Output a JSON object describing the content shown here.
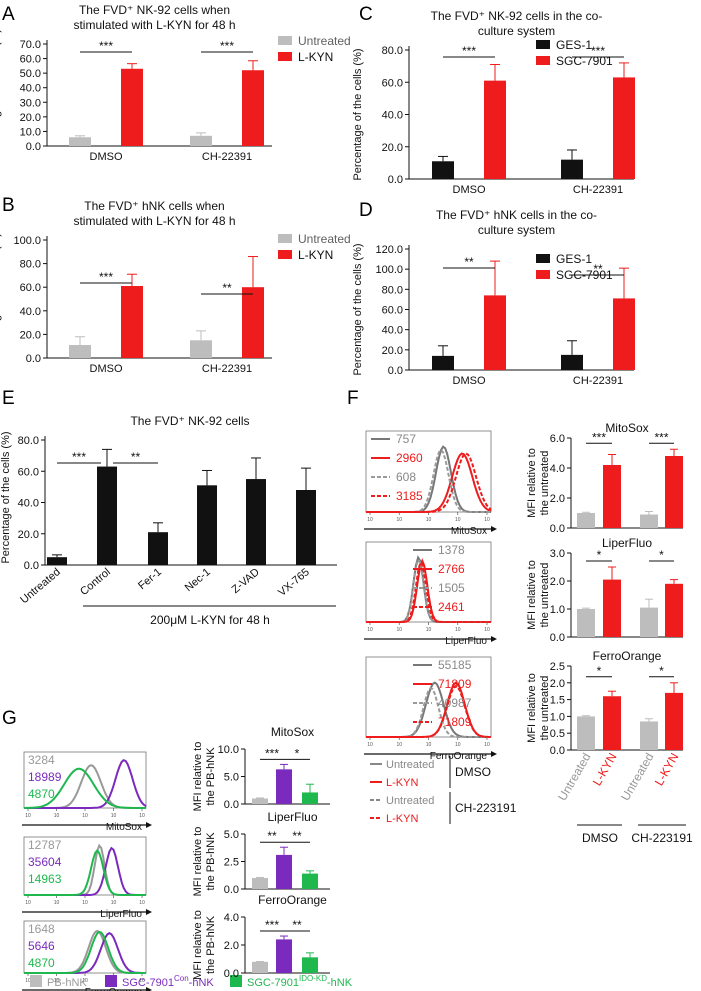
{
  "colors": {
    "gray": "#bdbdbd",
    "red": "#ee1c1c",
    "black": "#111111",
    "purple": "#7a2bbd",
    "green": "#1fb84f",
    "dark": "#606060"
  },
  "panel_letters": {
    "A": "A",
    "B": "B",
    "C": "C",
    "D": "D",
    "E": "E",
    "F": "F",
    "G": "G"
  },
  "chart_data": [
    {
      "id": "A",
      "type": "bar",
      "title": [
        "The FVD⁺ NK-92 cells when",
        "stimulated with L-KYN for 48 h"
      ],
      "ylabel": "Percentage of the cells (%)",
      "categories": [
        "DMSO",
        "CH-22391"
      ],
      "legend": [
        "Untreated",
        "L-KYN"
      ],
      "ylim": [
        0,
        70
      ],
      "yticks": [
        "0.0",
        "10.0",
        "20.0",
        "30.0",
        "40.0",
        "50.0",
        "60.0",
        "70.0"
      ],
      "series": [
        {
          "name": "Untreated",
          "values": [
            6,
            7
          ],
          "errors": [
            1,
            2
          ]
        },
        {
          "name": "L-KYN",
          "values": [
            53,
            52
          ],
          "errors": [
            3.5,
            6.5
          ]
        }
      ],
      "sig": [
        "***",
        "***"
      ]
    },
    {
      "id": "B",
      "type": "bar",
      "title": [
        "The FVD⁺ hNK cells when",
        "stimulated with L-KYN for 48 h"
      ],
      "ylabel": "Percentage of the cells (%)",
      "categories": [
        "DMSO",
        "CH-22391"
      ],
      "legend": [
        "Untreated",
        "L-KYN"
      ],
      "ylim": [
        0,
        100
      ],
      "yticks": [
        "0.0",
        "20.0",
        "40.0",
        "60.0",
        "80.0",
        "100.0"
      ],
      "series": [
        {
          "name": "Untreated",
          "values": [
            11,
            15
          ],
          "errors": [
            7,
            8
          ]
        },
        {
          "name": "L-KYN",
          "values": [
            61,
            60
          ],
          "errors": [
            10,
            26
          ]
        }
      ],
      "sig": [
        "***",
        "**"
      ]
    },
    {
      "id": "C",
      "type": "bar",
      "title": [
        "The FVD⁺ NK-92 cells in the co-",
        "culture system"
      ],
      "ylabel": "Percentage of the cells (%)",
      "categories": [
        "DMSO",
        "CH-22391"
      ],
      "legend": [
        "GES-1",
        "SGC-7901"
      ],
      "ylim": [
        0,
        80
      ],
      "yticks": [
        "0.0",
        "20.0",
        "40.0",
        "60.0",
        "80.0"
      ],
      "series": [
        {
          "name": "GES-1",
          "values": [
            11,
            12
          ],
          "errors": [
            3,
            6
          ]
        },
        {
          "name": "SGC-7901",
          "values": [
            61,
            63
          ],
          "errors": [
            10,
            9
          ]
        }
      ],
      "sig": [
        "***",
        "***"
      ]
    },
    {
      "id": "D",
      "type": "bar",
      "title": [
        "The FVD⁺ hNK cells in the co-",
        "culture system"
      ],
      "ylabel": "Percentage of the cells (%)",
      "categories": [
        "DMSO",
        "CH-22391"
      ],
      "legend": [
        "GES-1",
        "SGC-7901"
      ],
      "ylim": [
        0,
        120
      ],
      "yticks": [
        "0.0",
        "20.0",
        "40.0",
        "60.0",
        "80.0",
        "100.0",
        "120.0"
      ],
      "series": [
        {
          "name": "GES-1",
          "values": [
            14,
            15
          ],
          "errors": [
            10,
            14
          ]
        },
        {
          "name": "SGC-7901",
          "values": [
            74,
            71
          ],
          "errors": [
            34,
            30
          ]
        }
      ],
      "sig": [
        "**",
        "**"
      ]
    },
    {
      "id": "E",
      "type": "bar",
      "title": [
        "The FVD⁺ NK-92 cells"
      ],
      "ylabel": "Percentage of the cells (%)",
      "categories": [
        "Untreated",
        "Control",
        "Fer-1",
        "Nec-1",
        "Z-VAD",
        "VX-765"
      ],
      "group_label": "200μM L-KYN for 48 h",
      "ylim": [
        0,
        80
      ],
      "yticks": [
        "0.0",
        "20.0",
        "40.0",
        "60.0",
        "80.0"
      ],
      "values": [
        5,
        63,
        21,
        51,
        55,
        48
      ],
      "errors": [
        1.5,
        11,
        6,
        9.5,
        13.5,
        14
      ],
      "sig": [
        {
          "from": 0,
          "to": 1,
          "label": "***"
        },
        {
          "from": 1,
          "to": 2,
          "label": "**"
        }
      ]
    },
    {
      "id": "F",
      "type": "bar",
      "ylabel": [
        "MFI relative to",
        "the untreated"
      ],
      "categories": [
        "Untreated",
        "L-KYN",
        "Untreated",
        "L-KYN"
      ],
      "group_labels": [
        "DMSO",
        "CH-223191"
      ],
      "subplots": [
        {
          "title": "MitoSox",
          "ylim": [
            0,
            6
          ],
          "yticks": [
            "0.0",
            "2.0",
            "4.0",
            "6.0"
          ],
          "values": [
            1.0,
            4.2,
            0.9,
            4.8
          ],
          "errors": [
            0.05,
            0.7,
            0.2,
            0.45
          ],
          "sig": [
            "***",
            "***"
          ]
        },
        {
          "title": "LiperFluo",
          "ylim": [
            0,
            3
          ],
          "yticks": [
            "0.0",
            "1.0",
            "2.0",
            "3.0"
          ],
          "values": [
            1.0,
            2.05,
            1.05,
            1.9
          ],
          "errors": [
            0.03,
            0.45,
            0.3,
            0.15
          ],
          "sig": [
            "*",
            "*"
          ]
        },
        {
          "title": "FerroOrange",
          "ylim": [
            0,
            2.5
          ],
          "yticks": [
            "0.0",
            "0.5",
            "1.0",
            "1.5",
            "2.0",
            "2.5"
          ],
          "values": [
            1.0,
            1.6,
            0.85,
            1.7
          ],
          "errors": [
            0.02,
            0.15,
            0.08,
            0.3
          ],
          "sig": [
            "*",
            "*"
          ]
        }
      ]
    },
    {
      "id": "F-histograms",
      "type": "histogram",
      "panels": [
        {
          "xlabel": "MitoSox",
          "mfi": [
            "757",
            "2960",
            "608",
            "3185"
          ]
        },
        {
          "xlabel": "LiperFluo",
          "mfi": [
            "1378",
            "2766",
            "1505",
            "2461"
          ]
        },
        {
          "xlabel": "FerroOrange",
          "mfi": [
            "55185",
            "71809",
            "40987",
            "71809"
          ]
        }
      ],
      "legend": [
        {
          "label": "Untreated",
          "group": "DMSO"
        },
        {
          "label": "L-KYN",
          "group": "DMSO"
        },
        {
          "label": "Untreated",
          "group": "CH-223191"
        },
        {
          "label": "L-KYN",
          "group": "CH-223191"
        }
      ]
    },
    {
      "id": "G",
      "type": "bar",
      "ylabel": [
        "MFI relative to",
        "the PB-hNK"
      ],
      "subplots": [
        {
          "title": "MitoSox",
          "ylim": [
            0,
            10
          ],
          "yticks": [
            "0.0",
            "5.0",
            "10.0"
          ],
          "values": [
            1.0,
            6.3,
            2.1
          ],
          "errors": [
            0.1,
            0.9,
            1.5
          ],
          "sig": [
            "***",
            "*"
          ]
        },
        {
          "title": "LiperFluo",
          "ylim": [
            0,
            5
          ],
          "yticks": [
            "0.0",
            "2.5",
            "5.0"
          ],
          "values": [
            1.0,
            3.1,
            1.4
          ],
          "errors": [
            0.05,
            0.7,
            0.25
          ],
          "sig": [
            "**",
            "**"
          ]
        },
        {
          "title": "FerroOrange",
          "ylim": [
            0,
            5
          ],
          "yticks": [
            "0.0",
            "2.0",
            "4.0"
          ],
          "values": [
            1.0,
            3.0,
            1.4
          ],
          "errors": [
            0.03,
            0.3,
            0.4
          ],
          "sig": [
            "***",
            "**"
          ]
        }
      ]
    },
    {
      "id": "G-histograms",
      "type": "histogram",
      "panels": [
        {
          "xlabel": "MitoSox",
          "mfi": [
            "3284",
            "18989",
            "4870"
          ]
        },
        {
          "xlabel": "LiperFluo",
          "mfi": [
            "12787",
            "35604",
            "14963"
          ]
        },
        {
          "xlabel": "FerroOrange",
          "mfi": [
            "1648",
            "5646",
            "4870"
          ]
        }
      ],
      "legend": [
        {
          "base": "PB-hNK",
          "sup": "",
          "tail": ""
        },
        {
          "base": "SGC-7901",
          "sup": "Con",
          "tail": "-hNK"
        },
        {
          "base": "SGC-7901",
          "sup": "IDO-KD",
          "tail": "-hNK"
        }
      ]
    }
  ]
}
